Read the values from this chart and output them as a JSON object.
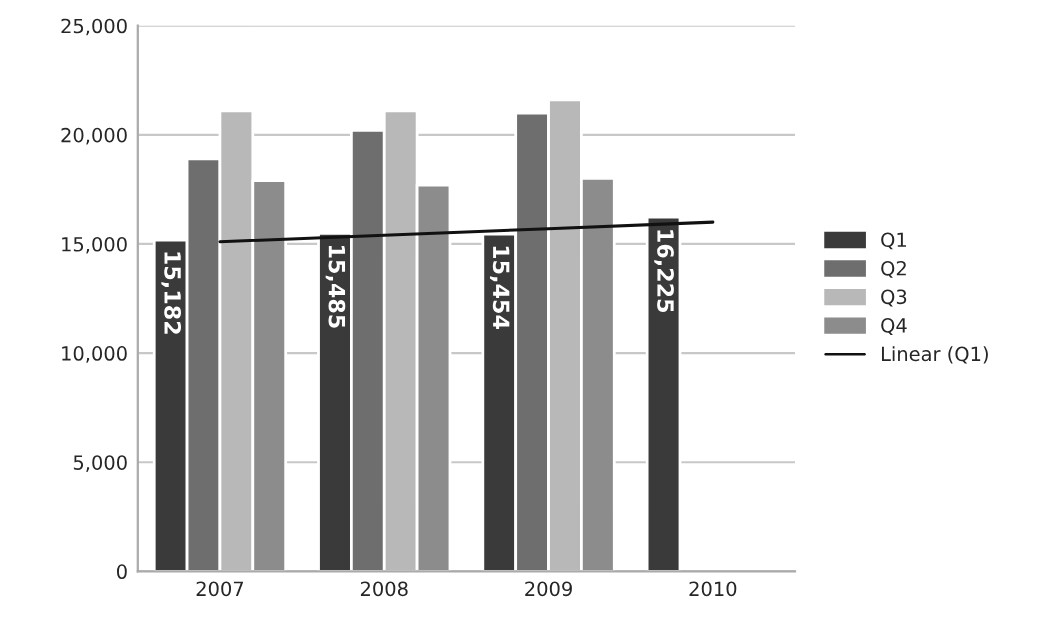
{
  "chart_data": {
    "type": "bar",
    "categories": [
      "2007",
      "2008",
      "2009",
      "2010"
    ],
    "series": [
      {
        "name": "Q1",
        "color": "#3a3a3a",
        "values": [
          15182,
          15485,
          15454,
          16225
        ],
        "value_labels": [
          "15,182",
          "15,485",
          "15,454",
          "16,225"
        ]
      },
      {
        "name": "Q2",
        "color": "#6e6e6e",
        "values": [
          18900,
          20200,
          21000,
          null
        ]
      },
      {
        "name": "Q3",
        "color": "#b8b8b8",
        "values": [
          21100,
          21100,
          21600,
          null
        ]
      },
      {
        "name": "Q4",
        "color": "#8c8c8c",
        "values": [
          17900,
          17700,
          18000,
          null
        ]
      },
      {
        "name": "Linear (Q1)",
        "type": "line",
        "color": "#111111",
        "values": [
          15100,
          15400,
          15700,
          16000
        ]
      }
    ],
    "ylim": [
      0,
      25000
    ],
    "yticks": [
      {
        "value": 0,
        "label": "0"
      },
      {
        "value": 5000,
        "label": "5,000"
      },
      {
        "value": 10000,
        "label": "10,000"
      },
      {
        "value": 15000,
        "label": "15,000"
      },
      {
        "value": 20000,
        "label": "20,000"
      },
      {
        "value": 25000,
        "label": "25,000"
      }
    ],
    "grid": "y",
    "legend": "right"
  }
}
